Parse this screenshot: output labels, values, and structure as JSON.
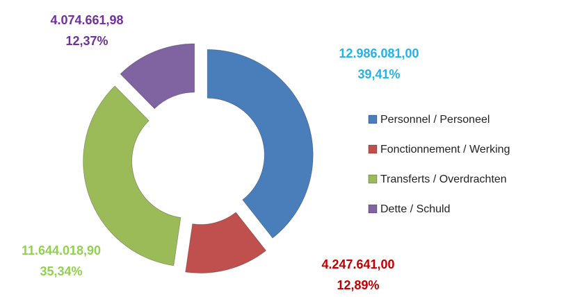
{
  "chart_data": {
    "type": "doughnut",
    "categories": [
      "Personnel / Personeel",
      "Fonctionnement / Werking",
      "Transferts / Overdrachten",
      "Dette / Schuld"
    ],
    "values": [
      12986081.0,
      4247641.0,
      11644018.9,
      4074661.98
    ],
    "value_labels": [
      "12.986.081,00",
      "4.247.641,00",
      "11.644.018,90",
      "4.074.661,98"
    ],
    "percentages": [
      39.41,
      12.89,
      35.34,
      12.37
    ],
    "percentage_labels": [
      "39,41%",
      "12,89%",
      "35,34%",
      "12,37%"
    ],
    "colors": [
      "#4a7ebb",
      "#c0504d",
      "#9bbb59",
      "#8064a2"
    ],
    "label_colors": [
      "#1fb4ea",
      "#c00000",
      "#92d050",
      "#7030a0"
    ],
    "legend": "right"
  }
}
